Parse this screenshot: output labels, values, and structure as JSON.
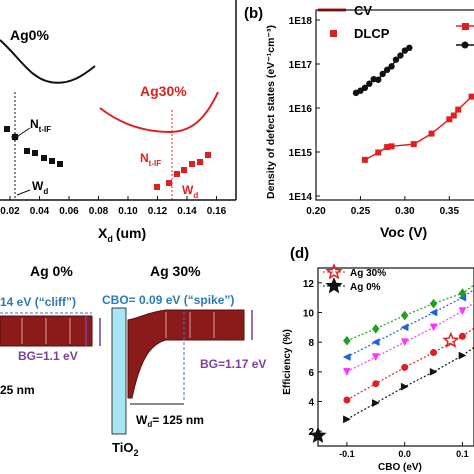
{
  "panel_a": {
    "legend": {
      "cv": "CV",
      "dlcp": "DLCP"
    },
    "label_ag0": "Ag0%",
    "label_ag30": "Ag30%",
    "ntif": "N",
    "ntif_sub": "t-IF",
    "wd": "W",
    "wd_sub": "d",
    "xlabel": "X",
    "xlabel_sub": "d",
    "xlabel_unit": "(um)",
    "xticks": [
      "0.02",
      "0.04",
      "0.06",
      "0.08",
      "0.10",
      "0.12",
      "0.14",
      "0.16"
    ],
    "colors": {
      "ag0": "#111111",
      "ag30": "#e02020"
    }
  },
  "panel_b": {
    "tag": "(b)",
    "ylabel": "Density of defect states (eV⁻¹cm⁻³)",
    "yticks": [
      "1E18",
      "1E17",
      "1E16",
      "1E15",
      "1E14"
    ],
    "xticks": [
      "0.20",
      "0.25",
      "0.30",
      "0.35"
    ],
    "xlabel": "Voc (V)"
  },
  "panel_c": {
    "label_ag0": "Ag 0%",
    "label_ag30": "Ag 30%",
    "cliff": "14 eV (“cliff”)",
    "spike": "CBO= 0.09 eV (“spike”)",
    "bg_left": "BG=1.1 eV",
    "bg_right": "BG=1.17 eV",
    "wd_left": "25 nm",
    "wd_right": "= 125 nm",
    "wd_right_prefix": "W",
    "wd_right_sub": "d",
    "tio2": "TiO",
    "tio2_sub": "2"
  },
  "panel_d": {
    "tag": "(d)",
    "ylabel": "Efficiency (%)",
    "xlabel": "CBO (eV)",
    "legend": [
      "Ag 30%",
      "Ag 0%"
    ],
    "yticks": [
      "12",
      "10",
      "8",
      "6",
      "4",
      "2"
    ],
    "xticks": [
      "-0.1",
      "0.0",
      "0.1"
    ]
  },
  "chart_data": [
    {
      "type": "scatter",
      "panel": "b",
      "xlabel": "Voc (V)",
      "ylabel": "Density of defect states (eV-1 cm-3)",
      "log_y": true,
      "ylim": [
        100000000000000.0,
        1e+18
      ],
      "xlim": [
        0.2,
        0.38
      ],
      "series": [
        {
          "color": "#111111",
          "x": [
            0.245,
            0.25,
            0.255,
            0.26,
            0.265,
            0.27,
            0.275,
            0.28,
            0.285,
            0.29,
            0.295,
            0.3,
            0.305
          ],
          "y": [
            1.8e+16,
            2e+16,
            2.3e+16,
            2.8e+16,
            3.5e+16,
            3.4e+16,
            4.5e+16,
            5.5e+16,
            6.5e+16,
            9e+16,
            1.1e+17,
            1.4e+17,
            1.6e+17
          ]
        },
        {
          "color": "#e02020",
          "x": [
            0.255,
            0.27,
            0.28,
            0.285,
            0.31,
            0.33,
            0.35,
            0.355,
            0.36,
            0.375
          ],
          "y": [
            700000000000000.0,
            1000000000000000.0,
            1300000000000000.0,
            1350000000000000.0,
            1500000000000000.0,
            2500000000000000.0,
            5000000000000000.0,
            6000000000000000.0,
            8000000000000000.0,
            1.5e+16
          ]
        }
      ]
    },
    {
      "type": "scatter",
      "panel": "d",
      "xlabel": "CBO (eV)",
      "ylabel": "Efficiency (%)",
      "xlim": [
        -0.15,
        0.12
      ],
      "ylim": [
        1,
        13
      ],
      "series": [
        {
          "name": "Ag 30%",
          "color": "#e02020",
          "marker": "star",
          "x": [
            0.08
          ],
          "y": [
            8.1
          ]
        },
        {
          "name": "Ag 0%",
          "color": "#111111",
          "marker": "star",
          "x": [
            -0.15
          ],
          "y": [
            1.7
          ]
        },
        {
          "color": "#111111",
          "marker": "triangle-right",
          "x": [
            -0.1,
            -0.05,
            0.0,
            0.05,
            0.1
          ],
          "y": [
            2.8,
            3.9,
            5.0,
            6.0,
            7.1
          ]
        },
        {
          "color": "#e02020",
          "marker": "circle",
          "x": [
            -0.1,
            -0.05,
            0.0,
            0.05,
            0.1
          ],
          "y": [
            4.1,
            5.2,
            6.3,
            7.3,
            8.4
          ]
        },
        {
          "color": "#ff33ff",
          "marker": "triangle-down",
          "x": [
            -0.1,
            -0.05,
            0.0,
            0.05,
            0.1
          ],
          "y": [
            6.0,
            7.0,
            8.0,
            9.0,
            10.1
          ]
        },
        {
          "color": "#2060e0",
          "marker": "triangle-left",
          "x": [
            -0.1,
            -0.05,
            0.0,
            0.05,
            0.1
          ],
          "y": [
            7.0,
            8.0,
            9.0,
            10.0,
            11.0
          ]
        },
        {
          "color": "#20a020",
          "marker": "diamond",
          "x": [
            -0.1,
            -0.05,
            0.0,
            0.05,
            0.1
          ],
          "y": [
            8.1,
            8.9,
            9.8,
            10.6,
            11.3
          ]
        }
      ]
    }
  ]
}
